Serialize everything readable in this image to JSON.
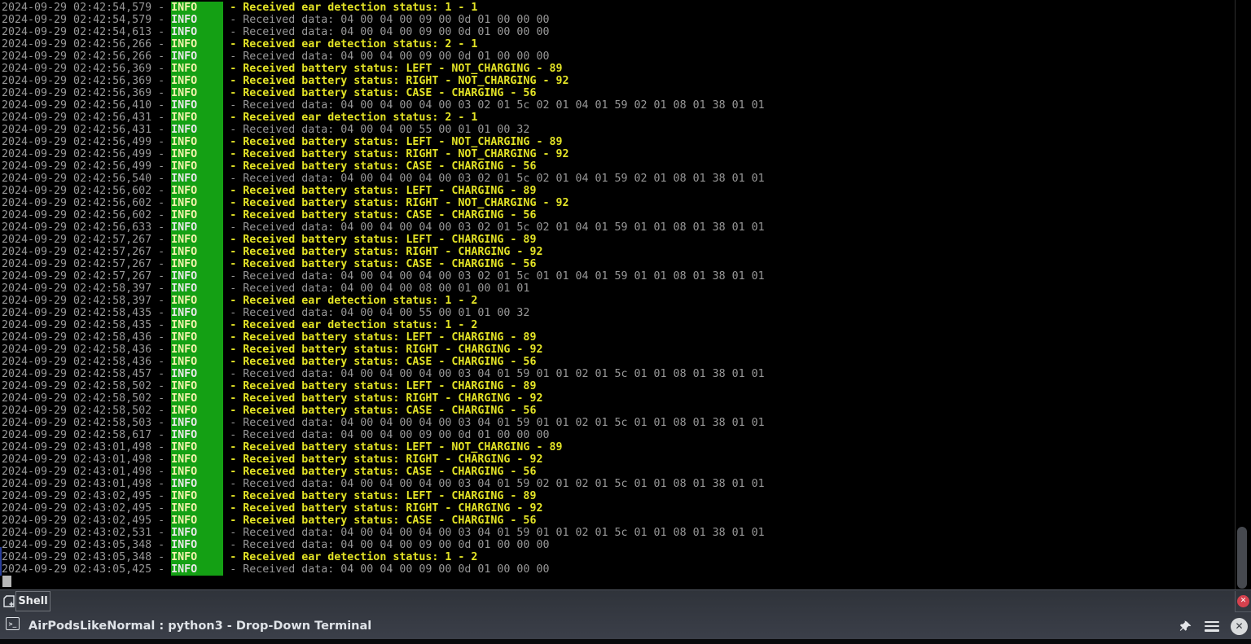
{
  "colors": {
    "terminal_bg": "#000000",
    "timestamp_gray": "#989898",
    "message_yellow": "#e3e326",
    "info_badge_green": "#14a014",
    "panel_bg": "#353943",
    "red_close": "#d5414e",
    "selection_blue_strip": "#2a3f9d",
    "cursor_gray": "#b7b7b7"
  },
  "terminal": {
    "level_label": "INFO",
    "lines": [
      {
        "time": "2024-09-29 02:42:54,579",
        "level": "INFO",
        "style": "hl",
        "message": "Received ear detection status: 1 - 1"
      },
      {
        "time": "2024-09-29 02:42:54,579",
        "level": "INFO",
        "style": "plain",
        "message": "Received data: 04 00 04 00 09 00 0d 01 00 00 00"
      },
      {
        "time": "2024-09-29 02:42:54,613",
        "level": "INFO",
        "style": "plain",
        "message": "Received data: 04 00 04 00 09 00 0d 01 00 00 00"
      },
      {
        "time": "2024-09-29 02:42:56,266",
        "level": "INFO",
        "style": "hl",
        "message": "Received ear detection status: 2 - 1"
      },
      {
        "time": "2024-09-29 02:42:56,266",
        "level": "INFO",
        "style": "plain",
        "message": "Received data: 04 00 04 00 09 00 0d 01 00 00 00"
      },
      {
        "time": "2024-09-29 02:42:56,369",
        "level": "INFO",
        "style": "hl",
        "message": "Received battery status: LEFT - NOT_CHARGING - 89"
      },
      {
        "time": "2024-09-29 02:42:56,369",
        "level": "INFO",
        "style": "hl",
        "message": "Received battery status: RIGHT - NOT_CHARGING - 92"
      },
      {
        "time": "2024-09-29 02:42:56,369",
        "level": "INFO",
        "style": "hl",
        "message": "Received battery status: CASE - CHARGING - 56"
      },
      {
        "time": "2024-09-29 02:42:56,410",
        "level": "INFO",
        "style": "plain",
        "message": "Received data: 04 00 04 00 04 00 03 02 01 5c 02 01 04 01 59 02 01 08 01 38 01 01"
      },
      {
        "time": "2024-09-29 02:42:56,431",
        "level": "INFO",
        "style": "hl",
        "message": "Received ear detection status: 2 - 1"
      },
      {
        "time": "2024-09-29 02:42:56,431",
        "level": "INFO",
        "style": "plain",
        "message": "Received data: 04 00 04 00 55 00 01 01 00 32"
      },
      {
        "time": "2024-09-29 02:42:56,499",
        "level": "INFO",
        "style": "hl",
        "message": "Received battery status: LEFT - NOT_CHARGING - 89"
      },
      {
        "time": "2024-09-29 02:42:56,499",
        "level": "INFO",
        "style": "hl",
        "message": "Received battery status: RIGHT - NOT_CHARGING - 92"
      },
      {
        "time": "2024-09-29 02:42:56,499",
        "level": "INFO",
        "style": "hl",
        "message": "Received battery status: CASE - CHARGING - 56"
      },
      {
        "time": "2024-09-29 02:42:56,540",
        "level": "INFO",
        "style": "plain",
        "message": "Received data: 04 00 04 00 04 00 03 02 01 5c 02 01 04 01 59 02 01 08 01 38 01 01"
      },
      {
        "time": "2024-09-29 02:42:56,602",
        "level": "INFO",
        "style": "hl",
        "message": "Received battery status: LEFT - CHARGING - 89"
      },
      {
        "time": "2024-09-29 02:42:56,602",
        "level": "INFO",
        "style": "hl",
        "message": "Received battery status: RIGHT - NOT_CHARGING - 92"
      },
      {
        "time": "2024-09-29 02:42:56,602",
        "level": "INFO",
        "style": "hl",
        "message": "Received battery status: CASE - CHARGING - 56"
      },
      {
        "time": "2024-09-29 02:42:56,633",
        "level": "INFO",
        "style": "plain",
        "message": "Received data: 04 00 04 00 04 00 03 02 01 5c 02 01 04 01 59 01 01 08 01 38 01 01"
      },
      {
        "time": "2024-09-29 02:42:57,267",
        "level": "INFO",
        "style": "hl",
        "message": "Received battery status: LEFT - CHARGING - 89"
      },
      {
        "time": "2024-09-29 02:42:57,267",
        "level": "INFO",
        "style": "hl",
        "message": "Received battery status: RIGHT - CHARGING - 92"
      },
      {
        "time": "2024-09-29 02:42:57,267",
        "level": "INFO",
        "style": "hl",
        "message": "Received battery status: CASE - CHARGING - 56"
      },
      {
        "time": "2024-09-29 02:42:57,267",
        "level": "INFO",
        "style": "plain",
        "message": "Received data: 04 00 04 00 04 00 03 02 01 5c 01 01 04 01 59 01 01 08 01 38 01 01"
      },
      {
        "time": "2024-09-29 02:42:58,397",
        "level": "INFO",
        "style": "plain",
        "message": "Received data: 04 00 04 00 08 00 01 00 01 01"
      },
      {
        "time": "2024-09-29 02:42:58,397",
        "level": "INFO",
        "style": "hl",
        "message": "Received ear detection status: 1 - 2"
      },
      {
        "time": "2024-09-29 02:42:58,435",
        "level": "INFO",
        "style": "plain",
        "message": "Received data: 04 00 04 00 55 00 01 01 00 32"
      },
      {
        "time": "2024-09-29 02:42:58,435",
        "level": "INFO",
        "style": "hl",
        "message": "Received ear detection status: 1 - 2"
      },
      {
        "time": "2024-09-29 02:42:58,436",
        "level": "INFO",
        "style": "hl",
        "message": "Received battery status: LEFT - CHARGING - 89"
      },
      {
        "time": "2024-09-29 02:42:58,436",
        "level": "INFO",
        "style": "hl",
        "message": "Received battery status: RIGHT - CHARGING - 92"
      },
      {
        "time": "2024-09-29 02:42:58,436",
        "level": "INFO",
        "style": "hl",
        "message": "Received battery status: CASE - CHARGING - 56"
      },
      {
        "time": "2024-09-29 02:42:58,457",
        "level": "INFO",
        "style": "plain",
        "message": "Received data: 04 00 04 00 04 00 03 04 01 59 01 01 02 01 5c 01 01 08 01 38 01 01"
      },
      {
        "time": "2024-09-29 02:42:58,502",
        "level": "INFO",
        "style": "hl",
        "message": "Received battery status: LEFT - CHARGING - 89"
      },
      {
        "time": "2024-09-29 02:42:58,502",
        "level": "INFO",
        "style": "hl",
        "message": "Received battery status: RIGHT - CHARGING - 92"
      },
      {
        "time": "2024-09-29 02:42:58,502",
        "level": "INFO",
        "style": "hl",
        "message": "Received battery status: CASE - CHARGING - 56"
      },
      {
        "time": "2024-09-29 02:42:58,503",
        "level": "INFO",
        "style": "plain",
        "message": "Received data: 04 00 04 00 04 00 03 04 01 59 01 01 02 01 5c 01 01 08 01 38 01 01"
      },
      {
        "time": "2024-09-29 02:42:58,617",
        "level": "INFO",
        "style": "plain",
        "message": "Received data: 04 00 04 00 09 00 0d 01 00 00 00"
      },
      {
        "time": "2024-09-29 02:43:01,498",
        "level": "INFO",
        "style": "hl",
        "message": "Received battery status: LEFT - NOT_CHARGING - 89"
      },
      {
        "time": "2024-09-29 02:43:01,498",
        "level": "INFO",
        "style": "hl",
        "message": "Received battery status: RIGHT - CHARGING - 92"
      },
      {
        "time": "2024-09-29 02:43:01,498",
        "level": "INFO",
        "style": "hl",
        "message": "Received battery status: CASE - CHARGING - 56"
      },
      {
        "time": "2024-09-29 02:43:01,498",
        "level": "INFO",
        "style": "plain",
        "message": "Received data: 04 00 04 00 04 00 03 04 01 59 02 01 02 01 5c 01 01 08 01 38 01 01"
      },
      {
        "time": "2024-09-29 02:43:02,495",
        "level": "INFO",
        "style": "hl",
        "message": "Received battery status: LEFT - CHARGING - 89"
      },
      {
        "time": "2024-09-29 02:43:02,495",
        "level": "INFO",
        "style": "hl",
        "message": "Received battery status: RIGHT - CHARGING - 92"
      },
      {
        "time": "2024-09-29 02:43:02,495",
        "level": "INFO",
        "style": "hl",
        "message": "Received battery status: CASE - CHARGING - 56"
      },
      {
        "time": "2024-09-29 02:43:02,531",
        "level": "INFO",
        "style": "plain",
        "message": "Received data: 04 00 04 00 04 00 03 04 01 59 01 01 02 01 5c 01 01 08 01 38 01 01"
      },
      {
        "time": "2024-09-29 02:43:05,348",
        "level": "INFO",
        "style": "plain",
        "message": "Received data: 04 00 04 00 09 00 0d 01 00 00 00"
      },
      {
        "time": "2024-09-29 02:43:05,348",
        "level": "INFO",
        "style": "hl",
        "message": "Received ear detection status: 1 - 2"
      },
      {
        "time": "2024-09-29 02:43:05,425",
        "level": "INFO",
        "style": "plain",
        "message": "Received data: 04 00 04 00 09 00 0d 01 00 00 00"
      }
    ]
  },
  "tabbar": {
    "tab_label": "Shell",
    "new_tab_icon": "new-tab-icon",
    "close_tab_icon": "close-icon",
    "close_glyph": "✕"
  },
  "titlebar": {
    "title": "AirPodsLikeNormal : python3 - Drop-Down Terminal",
    "terminal_icon_glyph": ">_",
    "pin_icon": "pin-icon",
    "menu_icon": "hamburger-menu-icon",
    "close_icon": "close-icon",
    "close_glyph": "✕"
  }
}
